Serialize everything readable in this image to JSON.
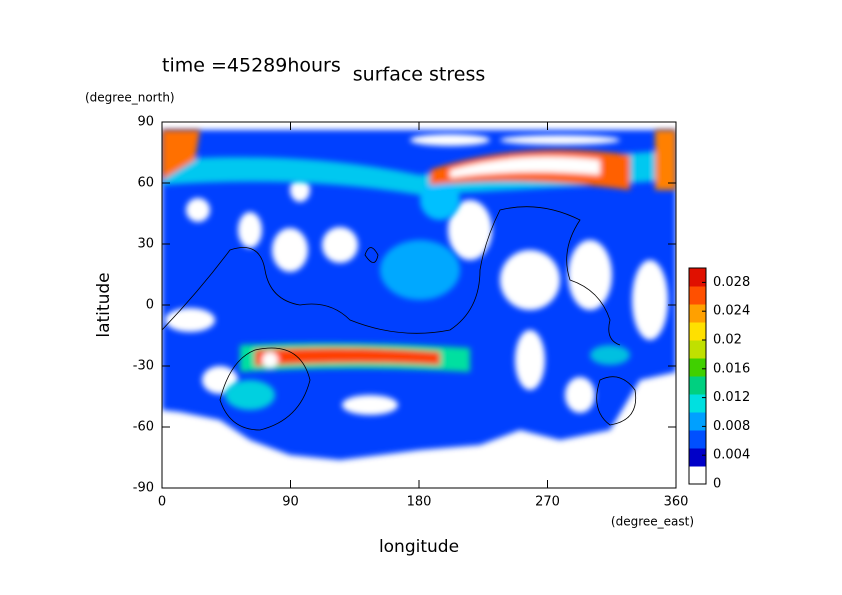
{
  "chart_data": {
    "type": "contour",
    "title": "surface stress",
    "subtitle": "time =45289hours",
    "x_label": "longitude",
    "x_unit": "(degree_east)",
    "y_label": "latitude",
    "y_unit": "(degree_north)",
    "xlim": [
      0,
      360
    ],
    "xticks": [
      0,
      90,
      180,
      270,
      360
    ],
    "ylim": [
      -90,
      90
    ],
    "yticks": [
      -90,
      -60,
      -30,
      0,
      30,
      60,
      90
    ],
    "colorbar": {
      "clim": [
        0,
        0.03
      ],
      "ticks": [
        0,
        0.004,
        0.008,
        0.012,
        0.016,
        0.02,
        0.024,
        0.028
      ],
      "colors": [
        "#ffffff",
        "#0000c8",
        "#0050ff",
        "#00a0ff",
        "#00e0e0",
        "#00d080",
        "#40d000",
        "#c0e000",
        "#ffe000",
        "#ffa000",
        "#ff5000",
        "#e01000"
      ]
    }
  }
}
